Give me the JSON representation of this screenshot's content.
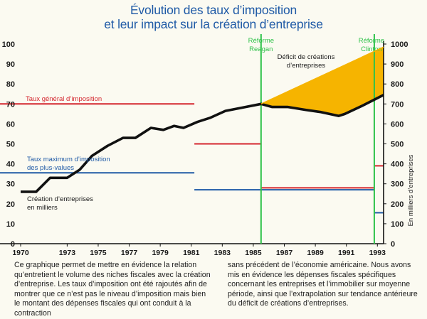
{
  "title": {
    "line1": "Évolution des taux d’imposition",
    "line2": "et leur impact sur la création d’entreprise"
  },
  "caption": {
    "left": "Ce graphique permet de mettre en évidence la relation qu’entretient le volume des niches fiscales avec la création d’entreprise. Les taux d’imposition ont été rajoutés afin de montrer que ce n’est pas le niveau d’imposition mais bien le montant des dépenses fiscales qui ont conduit à la contraction",
    "right": "sans précédent de l’économie américaine. Nous avons mis en évidence les dépenses fiscales spécifiques concernant les entreprises et l’immobilier sur moyenne période, ainsi que l’extrapolation sur tendance antérieure du déficit de créations d’entreprises."
  },
  "chart_data": {
    "type": "line",
    "title": "Évolution des taux d’imposition et leur impact sur la création d’entreprise",
    "xlim": [
      1970,
      1993.4
    ],
    "x_ticks": [
      "1970",
      "1973",
      "1975",
      "1977",
      "1979",
      "1981",
      "1983",
      "1985",
      "1987",
      "1989",
      "1991",
      "1993"
    ],
    "y_left": {
      "lim": [
        0,
        100
      ],
      "ticks": [
        "0",
        "10",
        "20",
        "30",
        "40",
        "50",
        "60",
        "70",
        "80",
        "90",
        "100"
      ]
    },
    "y_right": {
      "label": "En milliers d’entreprises",
      "lim": [
        0,
        1000
      ],
      "ticks": [
        "0",
        "100",
        "200",
        "300",
        "400",
        "500",
        "600",
        "700",
        "800",
        "900",
        "1000"
      ]
    },
    "series": [
      {
        "name": "Création d’entreprises en milliers",
        "axis": "right",
        "color": "#111111",
        "points": [
          [
            1970,
            260
          ],
          [
            1971,
            260
          ],
          [
            1971.9,
            330
          ],
          [
            1973,
            330
          ],
          [
            1973.8,
            370
          ],
          [
            1974.6,
            440
          ],
          [
            1975.6,
            490
          ],
          [
            1976.6,
            530
          ],
          [
            1977.4,
            530
          ],
          [
            1978.4,
            580
          ],
          [
            1979.2,
            570
          ],
          [
            1979.9,
            590
          ],
          [
            1980.5,
            580
          ],
          [
            1981.4,
            610
          ],
          [
            1982.2,
            630
          ],
          [
            1983.2,
            665
          ],
          [
            1984.2,
            680
          ],
          [
            1985.5,
            700
          ],
          [
            1986.2,
            685
          ],
          [
            1987.2,
            685
          ],
          [
            1988.4,
            670
          ],
          [
            1989.3,
            660
          ],
          [
            1990.5,
            640
          ],
          [
            1990.9,
            650
          ],
          [
            1992,
            690
          ],
          [
            1993.4,
            745
          ]
        ]
      },
      {
        "name": "Extrapolation sur tendance antérieure",
        "axis": "right",
        "color": "#f6b400",
        "points": [
          [
            1985.5,
            700
          ],
          [
            1993.4,
            985
          ]
        ]
      }
    ],
    "rate_segments": [
      {
        "name": "Taux général d’imposition",
        "color": "#d4262e",
        "label": "Taux général d’imposition",
        "x": [
          1970,
          1981.2
        ],
        "y": 70
      },
      {
        "name": "Taux général d’imposition",
        "color": "#d4262e",
        "x": [
          1981.2,
          1985.5
        ],
        "y": 50
      },
      {
        "name": "Taux général d’imposition",
        "color": "#d4262e",
        "x": [
          1985.5,
          1992.8
        ],
        "y": 28
      },
      {
        "name": "Taux général d’imposition",
        "color": "#d4262e",
        "x": [
          1992.8,
          1993.4
        ],
        "y": 39
      },
      {
        "name": "Taux maximum d’imposition des plus-values",
        "color": "#1f5aa6",
        "label": "Taux maximum d’imposition des plus-values",
        "x": [
          1970,
          1981.2
        ],
        "y": 35.5
      },
      {
        "name": "Taux maximum d’imposition des plus-values",
        "color": "#1f5aa6",
        "x": [
          1981.2,
          1985.5
        ],
        "y": 27
      },
      {
        "name": "Taux maximum d’imposition des plus-values",
        "color": "#1f5aa6",
        "x": [
          1985.5,
          1992.8
        ],
        "y": 27
      },
      {
        "name": "Taux maximum d’imposition des plus-values",
        "color": "#1f5aa6",
        "x": [
          1992.8,
          1993.4
        ],
        "y": 15.5
      }
    ],
    "reforms": [
      {
        "label_line1": "Réforme",
        "label_line2": "Reagan",
        "x": 1985.5,
        "color": "#2fc24a"
      },
      {
        "label_line1": "Réforme",
        "label_line2": "Clinton",
        "x": 1992.8,
        "color": "#2fc24a"
      }
    ],
    "annotations": {
      "deficit_line1": "Déficit de créations",
      "deficit_line2": "d’entreprises",
      "creation_line1": "Création d’entreprises",
      "creation_line2": "en milliers",
      "gen_rate": "Taux général d’imposition",
      "cg_rate_line1": "Taux maximum d’imposition",
      "cg_rate_line2": "des plus-values"
    },
    "colors": {
      "deficit_fill": "#f6b400",
      "title": "#1f5aa6"
    },
    "grid": false
  }
}
